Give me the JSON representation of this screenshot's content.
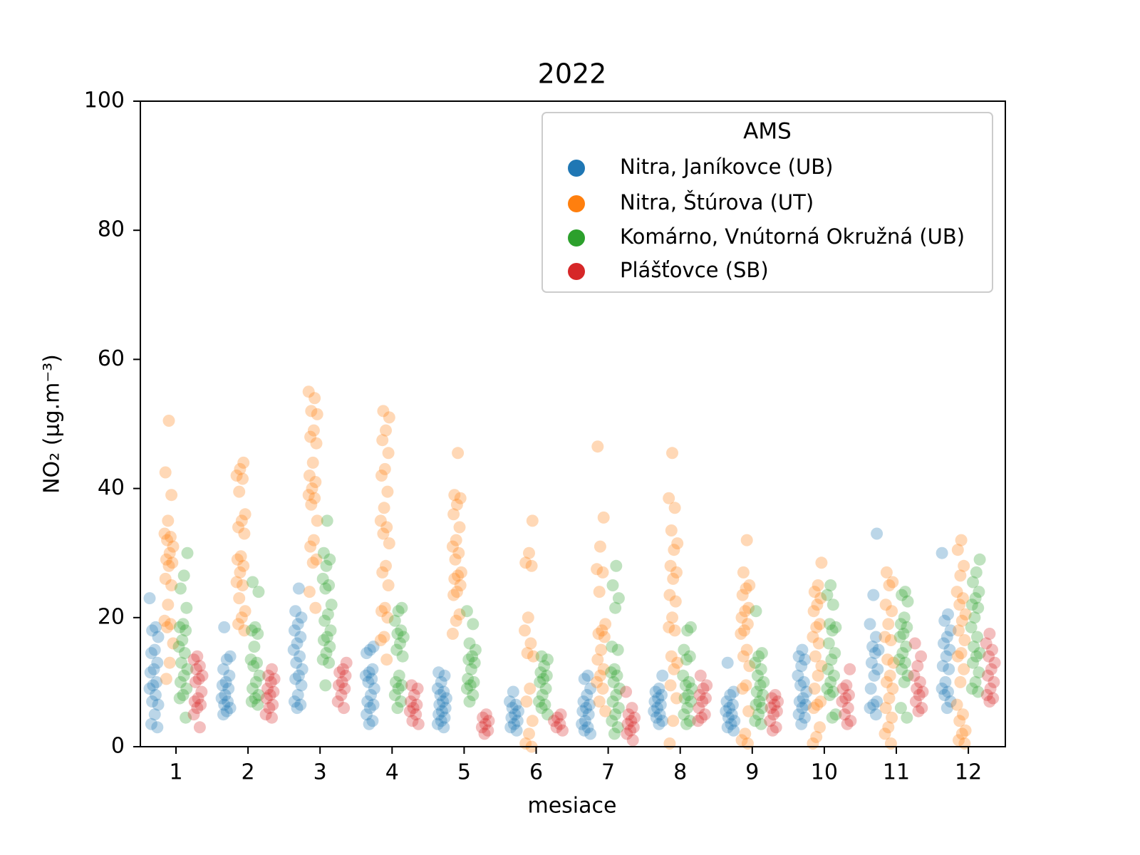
{
  "chart_data": {
    "type": "scatter",
    "title": "2022",
    "xlabel": "mesiace",
    "ylabel": "NO₂ (μg.m⁻³)",
    "ylim": [
      0,
      100
    ],
    "yticks": [
      0,
      20,
      40,
      60,
      80,
      100
    ],
    "categories": [
      "1",
      "2",
      "3",
      "4",
      "5",
      "6",
      "7",
      "8",
      "9",
      "10",
      "11",
      "12"
    ],
    "grid": false,
    "legend": {
      "title": "AMS",
      "placement": "top-right"
    },
    "series": [
      {
        "name": "Nitra, Janíkovce (UB)",
        "color": "#1f77b4",
        "values": [
          [
            23,
            18.5,
            18,
            17,
            15,
            14.5,
            13,
            12,
            11.5,
            10,
            9.5,
            9,
            8,
            7,
            6.5,
            5,
            3.5,
            3
          ],
          [
            18.5,
            14,
            13.5,
            12,
            11,
            10,
            9.5,
            9,
            8,
            7.5,
            7,
            6.5,
            6,
            5.5,
            5
          ],
          [
            24.5,
            21,
            20,
            19,
            18,
            17,
            16,
            15,
            14,
            13,
            12,
            11,
            10.5,
            9.5,
            8,
            7,
            6.5,
            6
          ],
          [
            15.5,
            15,
            14.5,
            12,
            11.5,
            11,
            10.5,
            10,
            9,
            8,
            7,
            6.5,
            6,
            5,
            4,
            3.5
          ],
          [
            11.5,
            11,
            10,
            9,
            8.5,
            8,
            7.5,
            7,
            6.5,
            6,
            5.5,
            5,
            4.5,
            4,
            3.5,
            3
          ],
          [
            8.5,
            7,
            6.5,
            6,
            5.5,
            5,
            4.5,
            4,
            3.5,
            3,
            2.5
          ],
          [
            11,
            10.5,
            9,
            8,
            7,
            6.5,
            6,
            5.5,
            5,
            4,
            3.5,
            3,
            2.5,
            2
          ],
          [
            11,
            9,
            8.5,
            8,
            7.5,
            7,
            6.5,
            6,
            5.5,
            5,
            4.5,
            4,
            3.5
          ],
          [
            13,
            8.5,
            8,
            7,
            6.5,
            6,
            5.5,
            5,
            4.5,
            4,
            3.5,
            3,
            2.5
          ],
          [
            15,
            14,
            13.5,
            12.5,
            11,
            10,
            9.5,
            8.5,
            7.5,
            7,
            6.5,
            6,
            5,
            4.5,
            3.5
          ],
          [
            33,
            23.5,
            19,
            17,
            15.5,
            15,
            14.5,
            13,
            12,
            11,
            9,
            7,
            6.5,
            6,
            5
          ],
          [
            30,
            20.5,
            19.5,
            18,
            17,
            16,
            15,
            14,
            12.5,
            12,
            10,
            9,
            8.5,
            8,
            7,
            6
          ]
        ]
      },
      {
        "name": "Nitra, Štúrova (UT)",
        "color": "#ff7f0e",
        "values": [
          [
            50.5,
            42.5,
            39,
            35,
            33,
            32.5,
            32,
            31,
            30,
            29,
            28.5,
            28,
            26,
            25,
            22,
            19.5,
            19,
            18.5,
            16,
            13,
            10.5
          ],
          [
            44,
            43,
            42,
            41.5,
            39.5,
            36,
            35,
            34,
            33,
            29.5,
            29,
            28,
            27,
            25.5,
            25,
            23,
            21,
            20,
            19,
            18
          ],
          [
            55,
            54,
            52,
            51.5,
            49,
            48,
            47,
            44,
            42,
            41,
            40,
            39,
            38.5,
            37.5,
            35,
            32,
            31,
            29,
            28.5,
            24,
            21.5
          ],
          [
            52,
            51,
            49,
            47.5,
            45.5,
            43,
            42,
            39.5,
            37,
            35,
            34,
            33,
            31.5,
            28,
            27,
            25,
            21.5,
            21,
            20,
            17,
            16.5,
            13.5
          ],
          [
            45.5,
            39,
            38.5,
            37.5,
            36,
            34,
            32,
            31,
            30,
            29,
            27,
            26.5,
            26,
            25,
            24,
            23.5,
            20.5,
            19.5,
            17.5
          ],
          [
            35,
            30,
            28.5,
            28,
            20,
            18,
            16,
            14.5,
            14,
            9,
            7,
            4,
            2,
            0.5,
            0
          ],
          [
            46.5,
            35.5,
            31,
            27.5,
            27,
            24,
            19,
            18,
            17.5,
            17,
            15,
            13.5,
            12,
            11,
            10,
            9,
            7,
            5.5
          ],
          [
            45.5,
            38.5,
            37,
            33.5,
            31.5,
            30.5,
            28,
            27,
            26,
            23.5,
            22.5,
            20,
            18.5,
            18,
            14,
            13,
            12,
            9.5,
            7.5,
            4,
            0.5
          ],
          [
            32,
            27,
            25,
            24.5,
            23.5,
            21.5,
            21,
            20,
            19,
            18,
            17.5,
            15,
            14,
            12.5,
            9.5,
            9,
            5.5,
            2,
            1,
            0.5
          ],
          [
            28.5,
            25,
            24,
            23,
            22,
            21,
            19,
            18.5,
            17,
            16,
            14,
            12.5,
            11,
            9,
            7,
            6.5,
            6,
            3,
            1.5,
            0.5
          ],
          [
            27,
            25.5,
            25,
            22,
            21,
            19,
            17,
            16.5,
            13.5,
            13,
            11,
            10,
            9,
            7.5,
            6,
            4.5,
            3,
            2,
            0.5
          ],
          [
            32,
            30.5,
            28,
            26.5,
            24,
            23,
            22,
            20.5,
            19.5,
            18,
            16.5,
            14.5,
            14,
            12,
            10,
            6.5,
            5,
            4,
            2.5,
            2,
            1,
            0.5
          ]
        ]
      },
      {
        "name": "Komárno, Vnútorná Okružná (UB)",
        "color": "#2ca02c",
        "values": [
          [
            30,
            26.5,
            24.5,
            21.5,
            19,
            18.5,
            18,
            16.5,
            15.5,
            14.5,
            13,
            12,
            11,
            10,
            9,
            8,
            7.5,
            4.5
          ],
          [
            25.5,
            24,
            18.5,
            18,
            17.5,
            15.5,
            13.5,
            13,
            12.5,
            11,
            10,
            9,
            8,
            7.5,
            7,
            6.5
          ],
          [
            35,
            30,
            29,
            28,
            26,
            25,
            24.5,
            22,
            20.5,
            19.5,
            18,
            17,
            16.5,
            15.5,
            14.5,
            13.5,
            13,
            9.5
          ],
          [
            21.5,
            21,
            19.5,
            18,
            17.5,
            17,
            16,
            15,
            14,
            11,
            10,
            9.5,
            9,
            8,
            7,
            6
          ],
          [
            21,
            19,
            16,
            15,
            14,
            13.5,
            13,
            12,
            10.5,
            10,
            9.5,
            9,
            8,
            7
          ],
          [
            14,
            13.5,
            12.5,
            11.5,
            11,
            10.5,
            10,
            9,
            8,
            7,
            6.5,
            6,
            5
          ],
          [
            28,
            25,
            23,
            21.5,
            15.5,
            15,
            12,
            11.5,
            11,
            10,
            9,
            8,
            7,
            6,
            5,
            4,
            3,
            2
          ],
          [
            18.5,
            18,
            15,
            14,
            13.5,
            11,
            10,
            9.5,
            9,
            8,
            7.5,
            7,
            6,
            5,
            4,
            3.5
          ],
          [
            21,
            14.5,
            14,
            13,
            12,
            11,
            10,
            9.5,
            8.5,
            8,
            7,
            6.5,
            6,
            5,
            4,
            3.5
          ],
          [
            25,
            23.5,
            22,
            19,
            18.5,
            18,
            16,
            14.5,
            13.5,
            12,
            11,
            10,
            9,
            8.5,
            8,
            5,
            4.5
          ],
          [
            24,
            23.5,
            22.5,
            20,
            19,
            18.5,
            17.5,
            17,
            15.5,
            14.5,
            13.5,
            13,
            12,
            11,
            10,
            6,
            4.5
          ],
          [
            29,
            27,
            25.5,
            24,
            23,
            22,
            21.5,
            20,
            18.5,
            17,
            15.5,
            14.5,
            14,
            13,
            11.5,
            10,
            9,
            8.5
          ]
        ]
      },
      {
        "name": "Plášťovce (SB)",
        "color": "#d62728",
        "values": [
          [
            14,
            13.5,
            12.5,
            12,
            11,
            10.5,
            10,
            8.5,
            7.5,
            7,
            6.5,
            6,
            5,
            3
          ],
          [
            12,
            11,
            10.5,
            10,
            9,
            8.5,
            8,
            7.5,
            6.5,
            6,
            5,
            4.5
          ],
          [
            13,
            12,
            11.5,
            11,
            10,
            9.5,
            9,
            8,
            7,
            6
          ],
          [
            9.5,
            9,
            8,
            7,
            6.5,
            6,
            5.5,
            5,
            4,
            3.5
          ],
          [
            5,
            4.5,
            4,
            3.5,
            3,
            2.5,
            2
          ],
          [
            5,
            4.5,
            4,
            3.5,
            3,
            2.5
          ],
          [
            8.5,
            6,
            5,
            4.5,
            4,
            3.5,
            3,
            2.5,
            2,
            1
          ],
          [
            11,
            9.5,
            9,
            8,
            7.5,
            7,
            6,
            5,
            4.5,
            4
          ],
          [
            8,
            7.5,
            7,
            6.5,
            6,
            5.5,
            5,
            4,
            3,
            2.5
          ],
          [
            12,
            9.5,
            9,
            8,
            7.5,
            7,
            6,
            5,
            4,
            3.5
          ],
          [
            16,
            14,
            12.5,
            11,
            10,
            9,
            8.5,
            8,
            7,
            6,
            5.5
          ],
          [
            17.5,
            16,
            15,
            14,
            13,
            12,
            11,
            10,
            9,
            8,
            7.5,
            7
          ]
        ]
      }
    ]
  }
}
